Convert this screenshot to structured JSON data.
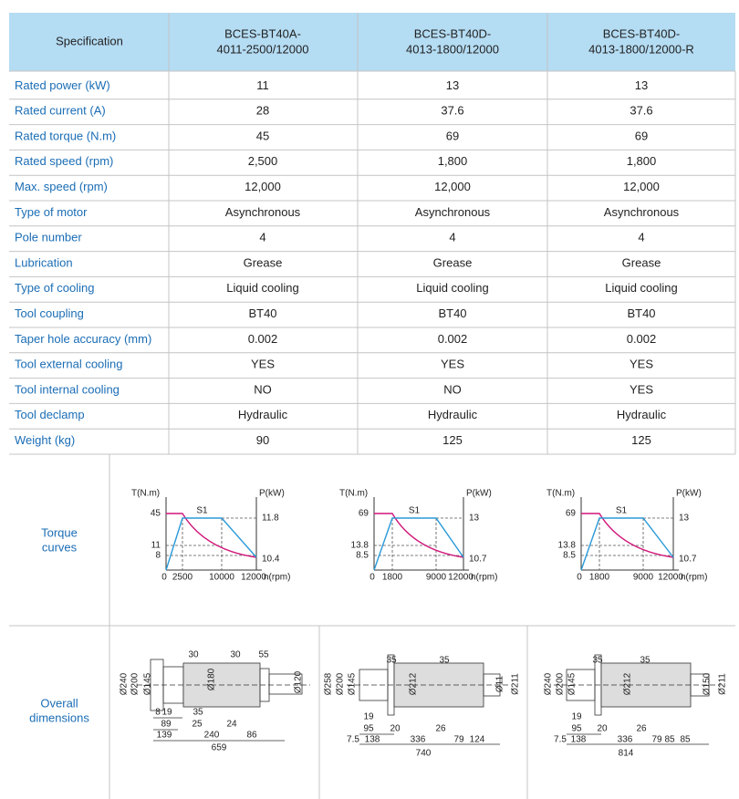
{
  "table": {
    "header": {
      "label": "Specification",
      "models": [
        [
          "BCES-BT40A-",
          "4011-2500/12000"
        ],
        [
          "BCES-BT40D-",
          "4013-1800/12000"
        ],
        [
          "BCES-BT40D-",
          "4013-1800/12000-R"
        ]
      ]
    },
    "rows": [
      {
        "label": "Rated power (kW)",
        "values": [
          "11",
          "13",
          "13"
        ]
      },
      {
        "label": "Rated current (A)",
        "values": [
          "28",
          "37.6",
          "37.6"
        ]
      },
      {
        "label": "Rated torque (N.m)",
        "values": [
          "45",
          "69",
          "69"
        ]
      },
      {
        "label": "Rated speed (rpm)",
        "values": [
          "2,500",
          "1,800",
          "1,800"
        ]
      },
      {
        "label": "Max. speed (rpm)",
        "values": [
          "12,000",
          "12,000",
          "12,000"
        ]
      },
      {
        "label": "Type of motor",
        "values": [
          "Asynchronous",
          "Asynchronous",
          "Asynchronous"
        ]
      },
      {
        "label": "Pole number",
        "values": [
          "4",
          "4",
          "4"
        ]
      },
      {
        "label": "Lubrication",
        "values": [
          "Grease",
          "Grease",
          "Grease"
        ]
      },
      {
        "label": "Type of cooling",
        "values": [
          "Liquid cooling",
          "Liquid cooling",
          "Liquid cooling"
        ]
      },
      {
        "label": "Tool coupling",
        "values": [
          "BT40",
          "BT40",
          "BT40"
        ]
      },
      {
        "label": "Taper hole accuracy (mm)",
        "values": [
          "0.002",
          "0.002",
          "0.002"
        ]
      },
      {
        "label": "Tool external cooling",
        "values": [
          "YES",
          "YES",
          "YES"
        ]
      },
      {
        "label": "Tool internal cooling",
        "values": [
          "NO",
          "NO",
          "YES"
        ]
      },
      {
        "label": "Tool declamp",
        "values": [
          "Hydraulic",
          "Hydraulic",
          "Hydraulic"
        ]
      },
      {
        "label": "Weight (kg)",
        "values": [
          "90",
          "125",
          "125"
        ]
      }
    ]
  },
  "torque_curves": {
    "label": [
      "Torque",
      "curves"
    ],
    "charts": [
      {
        "t_axis": "T(N.m)",
        "p_axis": "P(kW)",
        "x_axis": "n(rpm)",
        "duty": "S1",
        "t_ticks": [
          "45",
          "11",
          "8"
        ],
        "p_ticks": [
          "11.8",
          "10.4"
        ],
        "x_ticks": [
          "0",
          "2500",
          "10000",
          "12000"
        ]
      },
      {
        "t_axis": "T(N.m)",
        "p_axis": "P(kW)",
        "x_axis": "n(rpm)",
        "duty": "S1",
        "t_ticks": [
          "69",
          "13.8",
          "8.5"
        ],
        "p_ticks": [
          "13",
          "10.7"
        ],
        "x_ticks": [
          "0",
          "1800",
          "9000",
          "12000"
        ]
      },
      {
        "t_axis": "T(N.m)",
        "p_axis": "P(kW)",
        "x_axis": "n(rpm)",
        "duty": "S1",
        "t_ticks": [
          "69",
          "13.8",
          "8.5"
        ],
        "p_ticks": [
          "13",
          "10.7"
        ],
        "x_ticks": [
          "0",
          "1800",
          "9000",
          "12000"
        ]
      }
    ]
  },
  "dimensions": {
    "label": [
      "Overall",
      "dimensions"
    ],
    "drawings": [
      {
        "labels": [
          "30",
          "30",
          "55",
          "Ø240",
          "Ø200",
          "Ø145",
          "Ø180",
          "Ø120",
          "8",
          "19",
          "35",
          "89",
          "25",
          "24",
          "139",
          "240",
          "86",
          "659"
        ]
      },
      {
        "labels": [
          "35",
          "35",
          "Ø258",
          "Ø200",
          "Ø145",
          "Ø212",
          "Ø11",
          "Ø211",
          "19",
          "95",
          "20",
          "26",
          "7.5",
          "138",
          "336",
          "79",
          "124",
          "740"
        ]
      },
      {
        "labels": [
          "35",
          "35",
          "Ø240",
          "Ø200",
          "Ø145",
          "Ø212",
          "Ø150",
          "Ø211",
          "19",
          "95",
          "20",
          "26",
          "7.5",
          "138",
          "336",
          "79",
          "85",
          "85",
          "814"
        ]
      }
    ]
  }
}
